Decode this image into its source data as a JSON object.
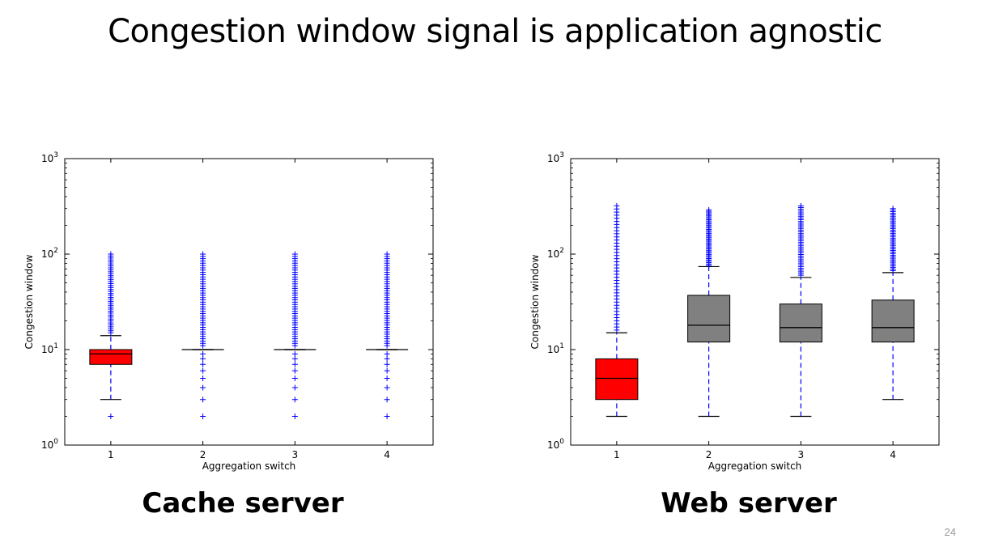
{
  "slide": {
    "title": "Congestion window signal is application agnostic",
    "page_number": "24"
  },
  "colors": {
    "cache_box": "#ff0000",
    "web_box_1": "#ff0000",
    "web_box_other": "#808080",
    "whisker": "#0000ff",
    "outlier": "#0000ff",
    "median": "#000000"
  },
  "chart_data": [
    {
      "type": "box",
      "caption": "Cache server",
      "xlabel": "Aggregation switch",
      "ylabel": "Congestion window",
      "yscale": "log",
      "ylim": [
        1,
        1000
      ],
      "yticks": [
        {
          "base": "10",
          "exp": "0"
        },
        {
          "base": "10",
          "exp": "1"
        },
        {
          "base": "10",
          "exp": "2"
        },
        {
          "base": "10",
          "exp": "3"
        }
      ],
      "categories": [
        "1",
        "2",
        "3",
        "4"
      ],
      "boxes": [
        {
          "category": "1",
          "q1": 7,
          "median": 9,
          "q3": 10,
          "whisker_low": 3,
          "whisker_high": 14,
          "fill": "#ff0000",
          "outliers_low": [
            2
          ],
          "outlier_high_range": [
            15,
            100
          ]
        },
        {
          "category": "2",
          "q1": 10,
          "median": 10,
          "q3": 10,
          "whisker_low": 10,
          "whisker_high": 10,
          "fill": "#ff0000",
          "outliers_low": [
            2,
            3,
            4,
            5,
            6,
            7,
            8,
            9
          ],
          "outlier_high_range": [
            11,
            100
          ]
        },
        {
          "category": "3",
          "q1": 10,
          "median": 10,
          "q3": 10,
          "whisker_low": 10,
          "whisker_high": 10,
          "fill": "#ff0000",
          "outliers_low": [
            2,
            3,
            4,
            5,
            6,
            7,
            8,
            9
          ],
          "outlier_high_range": [
            11,
            100
          ]
        },
        {
          "category": "4",
          "q1": 10,
          "median": 10,
          "q3": 10,
          "whisker_low": 10,
          "whisker_high": 10,
          "fill": "#ff0000",
          "outliers_low": [
            2,
            3,
            4,
            5,
            6,
            7,
            8,
            9
          ],
          "outlier_high_range": [
            11,
            100
          ]
        }
      ]
    },
    {
      "type": "box",
      "caption": "Web server",
      "xlabel": "Aggregation switch",
      "ylabel": "Congestion window",
      "yscale": "log",
      "ylim": [
        1,
        1000
      ],
      "yticks": [
        {
          "base": "10",
          "exp": "0"
        },
        {
          "base": "10",
          "exp": "1"
        },
        {
          "base": "10",
          "exp": "2"
        },
        {
          "base": "10",
          "exp": "3"
        }
      ],
      "categories": [
        "1",
        "2",
        "3",
        "4"
      ],
      "boxes": [
        {
          "category": "1",
          "q1": 3,
          "median": 5,
          "q3": 8,
          "whisker_low": 2,
          "whisker_high": 15,
          "fill": "#ff0000",
          "outliers_low": [],
          "outlier_high_range": [
            16,
            320
          ]
        },
        {
          "category": "2",
          "q1": 12,
          "median": 18,
          "q3": 37,
          "whisker_low": 2,
          "whisker_high": 74,
          "fill": "#808080",
          "outliers_low": [],
          "outlier_high_range": [
            76,
            290
          ]
        },
        {
          "category": "3",
          "q1": 12,
          "median": 17,
          "q3": 30,
          "whisker_low": 2,
          "whisker_high": 57,
          "fill": "#808080",
          "outliers_low": [],
          "outlier_high_range": [
            60,
            320
          ]
        },
        {
          "category": "4",
          "q1": 12,
          "median": 17,
          "q3": 33,
          "whisker_low": 3,
          "whisker_high": 64,
          "fill": "#808080",
          "outliers_low": [],
          "outlier_high_range": [
            67,
            300
          ]
        }
      ]
    }
  ]
}
